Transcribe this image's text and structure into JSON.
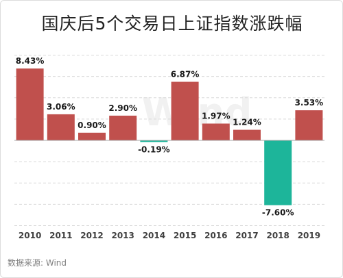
{
  "chart_data": {
    "type": "bar",
    "title": "国庆后5个交易日上证指数涨跌幅",
    "categories": [
      "2010",
      "2011",
      "2012",
      "2013",
      "2014",
      "2015",
      "2016",
      "2017",
      "2018",
      "2019"
    ],
    "values": [
      8.43,
      3.06,
      0.9,
      2.9,
      -0.19,
      6.87,
      1.97,
      1.24,
      -7.6,
      3.53
    ],
    "value_labels": [
      "8.43%",
      "3.06%",
      "0.90%",
      "2.90%",
      "-0.19%",
      "6.87%",
      "1.97%",
      "1.24%",
      "-7.60%",
      "3.53%"
    ],
    "xlabel": "",
    "ylabel": "",
    "ylim": [
      -11,
      10
    ],
    "grid": true,
    "colors": {
      "positive": "#c0504d",
      "negative": "#1db59a",
      "grid": "#d9d9d9",
      "axis": "#a6a6a6",
      "watermark": "#f1f1f1"
    },
    "watermark": "Wind"
  },
  "source_text": "数据来源: Wind"
}
